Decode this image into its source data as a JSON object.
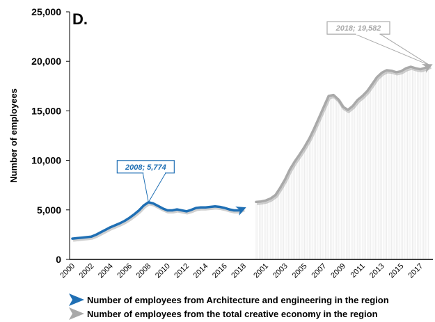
{
  "chart_data": {
    "type": "line",
    "panel_label": "D.",
    "ylabel": "Number of employees",
    "ylim": [
      0,
      25000
    ],
    "yticks": [
      "0",
      "5,000",
      "10,000",
      "15,000",
      "20,000",
      "25,000"
    ],
    "colors": {
      "architecture": "#1f6fb4",
      "creative": "#a9a9a9"
    },
    "series": [
      {
        "name": "Number of employees from Architecture and engineering in the region",
        "x_labels": [
          "2000",
          "2002",
          "2004",
          "2006",
          "2008",
          "2010",
          "2012",
          "2014",
          "2016",
          "2018"
        ],
        "x": [
          2000,
          2000.5,
          2001,
          2001.5,
          2002,
          2002.5,
          2003,
          2003.5,
          2004,
          2004.5,
          2005,
          2005.5,
          2006,
          2006.5,
          2007,
          2007.5,
          2008,
          2008.5,
          2009,
          2009.5,
          2010,
          2010.5,
          2011,
          2011.5,
          2012,
          2012.5,
          2013,
          2013.5,
          2014,
          2014.5,
          2015,
          2015.5,
          2016,
          2016.5,
          2017,
          2017.5,
          2018
        ],
        "values": [
          2100,
          2150,
          2200,
          2250,
          2300,
          2500,
          2750,
          3000,
          3250,
          3450,
          3650,
          3900,
          4200,
          4550,
          4950,
          5450,
          5774,
          5650,
          5400,
          5150,
          4950,
          4950,
          5050,
          4950,
          4850,
          5000,
          5200,
          5250,
          5250,
          5300,
          5350,
          5300,
          5200,
          5050,
          4950,
          4950,
          5150
        ]
      },
      {
        "name": "Number of employees from the total creative economy in the region",
        "x_labels": [
          "2001",
          "2003",
          "2005",
          "2007",
          "2009",
          "2011",
          "2013",
          "2015",
          "2017"
        ],
        "x": [
          2000,
          2000.5,
          2001,
          2001.5,
          2002,
          2002.5,
          2003,
          2003.5,
          2004,
          2004.5,
          2005,
          2005.5,
          2006,
          2006.5,
          2007,
          2007.5,
          2008,
          2008.5,
          2009,
          2009.5,
          2010,
          2010.5,
          2011,
          2011.5,
          2012,
          2012.5,
          2013,
          2013.5,
          2014,
          2014.5,
          2015,
          2015.5,
          2016,
          2016.5,
          2017,
          2017.5,
          2018
        ],
        "values": [
          5800,
          5850,
          5950,
          6150,
          6500,
          7250,
          8100,
          9100,
          9900,
          10600,
          11350,
          12200,
          13200,
          14300,
          15400,
          16500,
          16600,
          16150,
          15400,
          15100,
          15500,
          16100,
          16500,
          17000,
          17700,
          18400,
          18850,
          19100,
          19050,
          18900,
          19000,
          19300,
          19450,
          19300,
          19200,
          19350,
          19582
        ]
      }
    ],
    "annotations": [
      {
        "text": "2008; 5,774",
        "series": 0,
        "x": 2008,
        "y": 5774
      },
      {
        "text": "2018; 19,582",
        "series": 1,
        "x": 2018,
        "y": 19582
      }
    ],
    "legend": {
      "placement": "bottom",
      "items": [
        "Number of employees from Architecture and engineering in the region",
        "Number of employees from the total creative economy in the region"
      ]
    }
  }
}
